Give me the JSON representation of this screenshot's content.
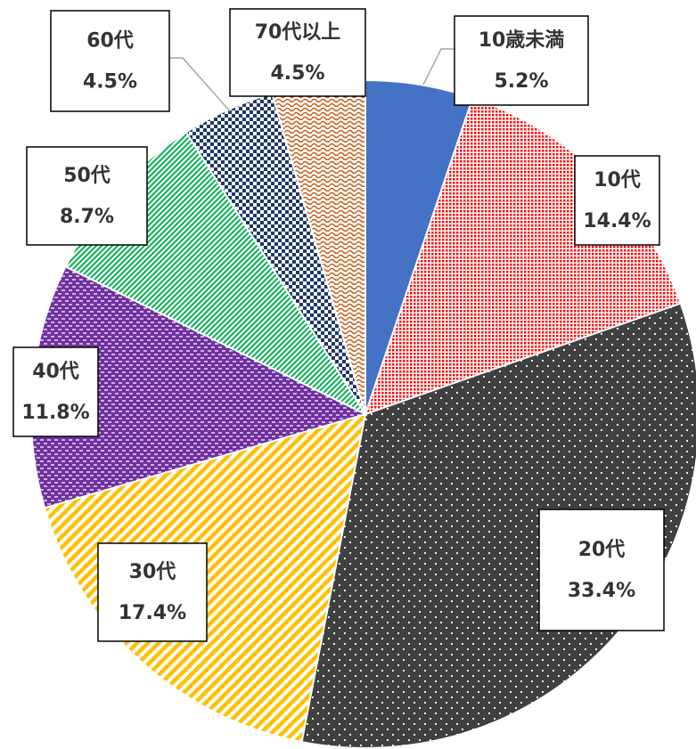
{
  "chart_data": {
    "type": "pie",
    "categories": [
      "10歳未満",
      "10代",
      "20代",
      "30代",
      "40代",
      "50代",
      "60代",
      "70代以上"
    ],
    "values": [
      5.2,
      14.4,
      33.4,
      17.4,
      11.8,
      8.7,
      4.5,
      4.5
    ],
    "value_labels": [
      "5.2%",
      "14.4%",
      "33.4%",
      "17.4%",
      "11.8%",
      "8.7%",
      "4.5%",
      "4.5%"
    ],
    "colors": [
      "#4472c4",
      "#ff0000",
      "#404040",
      "#ffc000",
      "#7030a0",
      "#00b050",
      "#203864",
      "#c55a11"
    ]
  }
}
